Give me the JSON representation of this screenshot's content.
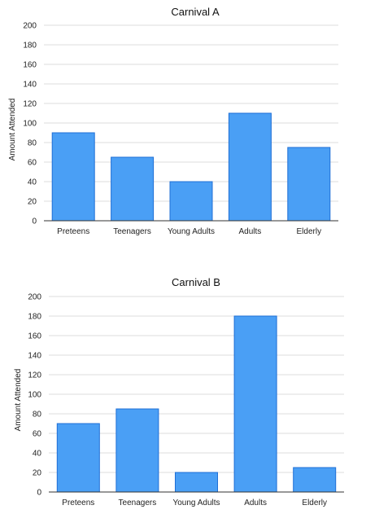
{
  "chart_data": [
    {
      "type": "bar",
      "title": "Carnival A",
      "xlabel": "",
      "ylabel": "Amount Attended",
      "categories": [
        "Preteens",
        "Teenagers",
        "Young Adults",
        "Adults",
        "Elderly"
      ],
      "values": [
        90,
        65,
        40,
        110,
        75
      ],
      "ylim": [
        0,
        200
      ],
      "yticks": [
        0,
        20,
        40,
        60,
        80,
        100,
        120,
        140,
        160,
        180,
        200
      ],
      "grid": true,
      "bar_color": "#4a9ff5"
    },
    {
      "type": "bar",
      "title": "Carnival B",
      "xlabel": "",
      "ylabel": "Amount Attended",
      "categories": [
        "Preteens",
        "Teenagers",
        "Young Adults",
        "Adults",
        "Elderly"
      ],
      "values": [
        70,
        85,
        20,
        180,
        25
      ],
      "ylim": [
        0,
        200
      ],
      "yticks": [
        0,
        20,
        40,
        60,
        80,
        100,
        120,
        140,
        160,
        180,
        200
      ],
      "grid": true,
      "bar_color": "#4a9ff5"
    }
  ]
}
